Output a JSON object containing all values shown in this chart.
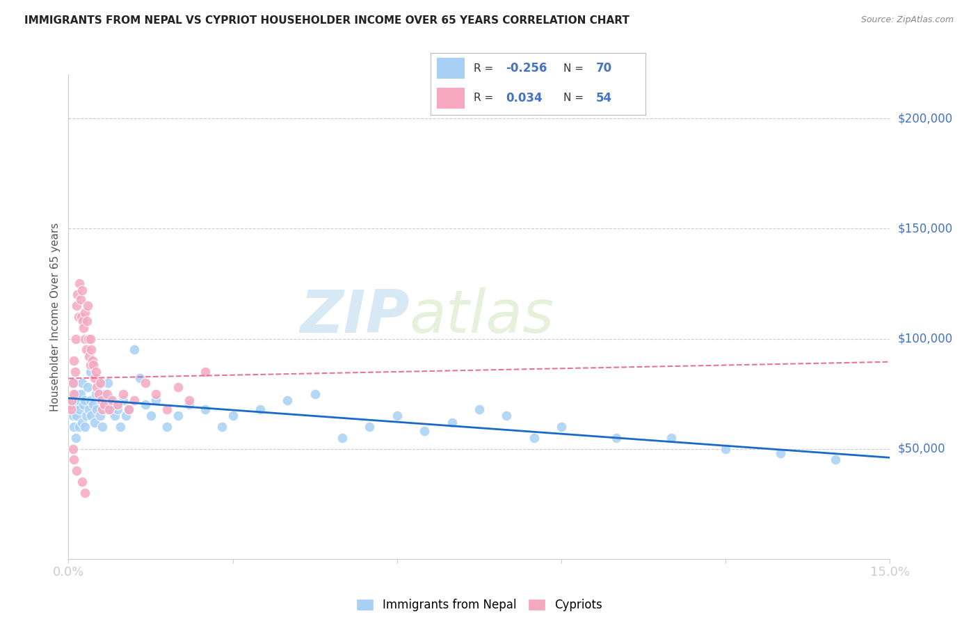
{
  "title": "IMMIGRANTS FROM NEPAL VS CYPRIOT HOUSEHOLDER INCOME OVER 65 YEARS CORRELATION CHART",
  "source": "Source: ZipAtlas.com",
  "ylabel": "Householder Income Over 65 years",
  "legend_label_nepal": "Immigrants from Nepal",
  "legend_label_cypriot": "Cypriots",
  "watermark_zip": "ZIP",
  "watermark_atlas": "atlas",
  "nepal_color": "#A8D0F5",
  "cypriot_color": "#F5A8C0",
  "nepal_line_color": "#1A6AC8",
  "cypriot_line_color": "#E05080",
  "background_color": "#FFFFFF",
  "grid_color": "#CCCCCC",
  "tick_color": "#4472C4",
  "ylabel_right_values": [
    200000,
    150000,
    100000,
    50000
  ],
  "ylabel_right_labels": [
    "$200,000",
    "$150,000",
    "$100,000",
    "$50,000"
  ],
  "nepal_r": -0.256,
  "nepal_n": 70,
  "cypriot_r": 0.034,
  "cypriot_n": 54,
  "nepal_x": [
    0.05,
    0.08,
    0.1,
    0.1,
    0.12,
    0.13,
    0.15,
    0.15,
    0.18,
    0.2,
    0.2,
    0.22,
    0.25,
    0.25,
    0.28,
    0.3,
    0.3,
    0.32,
    0.35,
    0.38,
    0.4,
    0.4,
    0.42,
    0.45,
    0.48,
    0.5,
    0.52,
    0.55,
    0.58,
    0.6,
    0.62,
    0.65,
    0.7,
    0.72,
    0.75,
    0.8,
    0.85,
    0.9,
    0.95,
    1.0,
    1.05,
    1.1,
    1.2,
    1.3,
    1.4,
    1.5,
    1.6,
    1.8,
    2.0,
    2.2,
    2.5,
    2.8,
    3.0,
    3.5,
    4.0,
    4.5,
    5.0,
    5.5,
    6.0,
    6.5,
    7.0,
    7.5,
    8.0,
    8.5,
    9.0,
    10.0,
    11.0,
    12.0,
    13.0,
    14.0
  ],
  "nepal_y": [
    70000,
    65000,
    80000,
    60000,
    75000,
    55000,
    70000,
    65000,
    72000,
    68000,
    60000,
    75000,
    80000,
    62000,
    70000,
    72000,
    60000,
    65000,
    78000,
    68000,
    85000,
    72000,
    65000,
    70000,
    62000,
    75000,
    68000,
    80000,
    65000,
    72000,
    60000,
    75000,
    68000,
    80000,
    72000,
    70000,
    65000,
    68000,
    60000,
    72000,
    65000,
    68000,
    95000,
    82000,
    70000,
    65000,
    72000,
    60000,
    65000,
    70000,
    68000,
    60000,
    65000,
    68000,
    72000,
    75000,
    55000,
    60000,
    65000,
    58000,
    62000,
    68000,
    65000,
    55000,
    60000,
    55000,
    55000,
    50000,
    48000,
    45000
  ],
  "cypriot_x": [
    0.04,
    0.06,
    0.08,
    0.1,
    0.1,
    0.12,
    0.14,
    0.15,
    0.16,
    0.18,
    0.2,
    0.22,
    0.24,
    0.25,
    0.26,
    0.28,
    0.3,
    0.3,
    0.32,
    0.34,
    0.35,
    0.36,
    0.38,
    0.4,
    0.4,
    0.42,
    0.44,
    0.45,
    0.48,
    0.5,
    0.52,
    0.55,
    0.58,
    0.6,
    0.62,
    0.65,
    0.7,
    0.75,
    0.8,
    0.9,
    1.0,
    1.1,
    1.2,
    1.4,
    1.6,
    1.8,
    2.0,
    2.2,
    2.5,
    0.08,
    0.1,
    0.15,
    0.25,
    0.3
  ],
  "cypriot_y": [
    68000,
    72000,
    80000,
    90000,
    75000,
    85000,
    100000,
    115000,
    120000,
    110000,
    125000,
    118000,
    110000,
    122000,
    108000,
    105000,
    112000,
    100000,
    95000,
    108000,
    115000,
    100000,
    92000,
    100000,
    88000,
    95000,
    90000,
    88000,
    82000,
    85000,
    78000,
    75000,
    80000,
    72000,
    68000,
    70000,
    75000,
    68000,
    72000,
    70000,
    75000,
    68000,
    72000,
    80000,
    75000,
    68000,
    78000,
    72000,
    85000,
    50000,
    45000,
    40000,
    35000,
    30000
  ]
}
